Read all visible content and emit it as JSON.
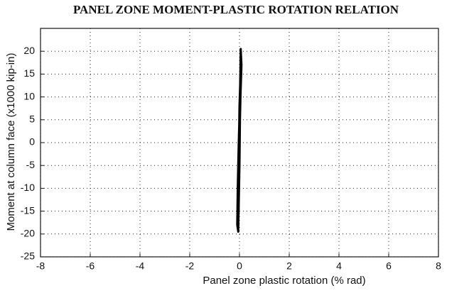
{
  "chart_data": {
    "type": "line",
    "title": "PANEL ZONE MOMENT-PLASTIC ROTATION RELATION",
    "xlabel": "Panel zone plastic rotation (% rad)",
    "ylabel": "Moment at column face (x1000 kip-in)",
    "x": [
      -0.05,
      -0.03,
      0.0,
      0.04,
      0.08,
      0.05,
      0.02,
      -0.03,
      -0.07,
      -0.09,
      -0.05,
      0.0,
      0.03,
      0.06,
      0.0,
      -0.04
    ],
    "values": [
      -19.5,
      -10,
      0,
      10,
      17,
      20.5,
      10,
      0,
      -10,
      -18,
      -19.5,
      -5,
      10,
      18,
      8,
      -8
    ],
    "color": "#000000",
    "xlim": [
      -8,
      8
    ],
    "xticks": [
      -8,
      -6,
      -4,
      -2,
      0,
      2,
      4,
      6,
      8
    ],
    "ylim": [
      -25,
      25
    ],
    "yticks": [
      -25,
      -20,
      -15,
      -10,
      -5,
      0,
      5,
      10,
      15,
      20
    ],
    "grid": true
  }
}
